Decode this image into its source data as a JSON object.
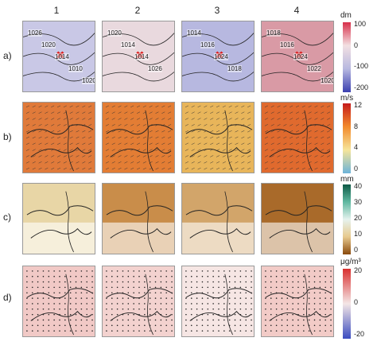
{
  "columns": [
    "1",
    "2",
    "3",
    "4"
  ],
  "rows": [
    {
      "label": "a)",
      "unit": "dm",
      "ticks": [
        "100",
        "0",
        "-100",
        "-200"
      ],
      "colors": [
        "#d7304a",
        "#f3e0e2",
        "#b8b9e0",
        "#3a3fb0"
      ]
    },
    {
      "label": "b)",
      "unit": "m/s",
      "ticks": [
        "12",
        "8",
        "4",
        "0"
      ],
      "colors": [
        "#c51b1b",
        "#f28a2c",
        "#f6e59a",
        "#6cb3d9"
      ]
    },
    {
      "label": "c)",
      "unit": "mm",
      "ticks": [
        "40",
        "30",
        "20",
        "10",
        "0"
      ],
      "colors": [
        "#0e5a46",
        "#5fb8a0",
        "#e6f3ef",
        "#e7c98e",
        "#8a4a0c"
      ]
    },
    {
      "label": "d)",
      "unit": "μg/m³",
      "ticks": [
        "20",
        "0",
        "-20"
      ],
      "colors": [
        "#d9302f",
        "#f4e6e6",
        "#3b4cc0"
      ]
    }
  ],
  "contour_labels": [
    [
      "1026",
      "1020",
      "1014",
      "1010",
      "1020"
    ],
    [
      "1020",
      "1014",
      "1014",
      "1026"
    ],
    [
      "1014",
      "1016",
      "1024",
      "1018"
    ],
    [
      "1018",
      "1016",
      "1024",
      "1022",
      "1020"
    ]
  ]
}
